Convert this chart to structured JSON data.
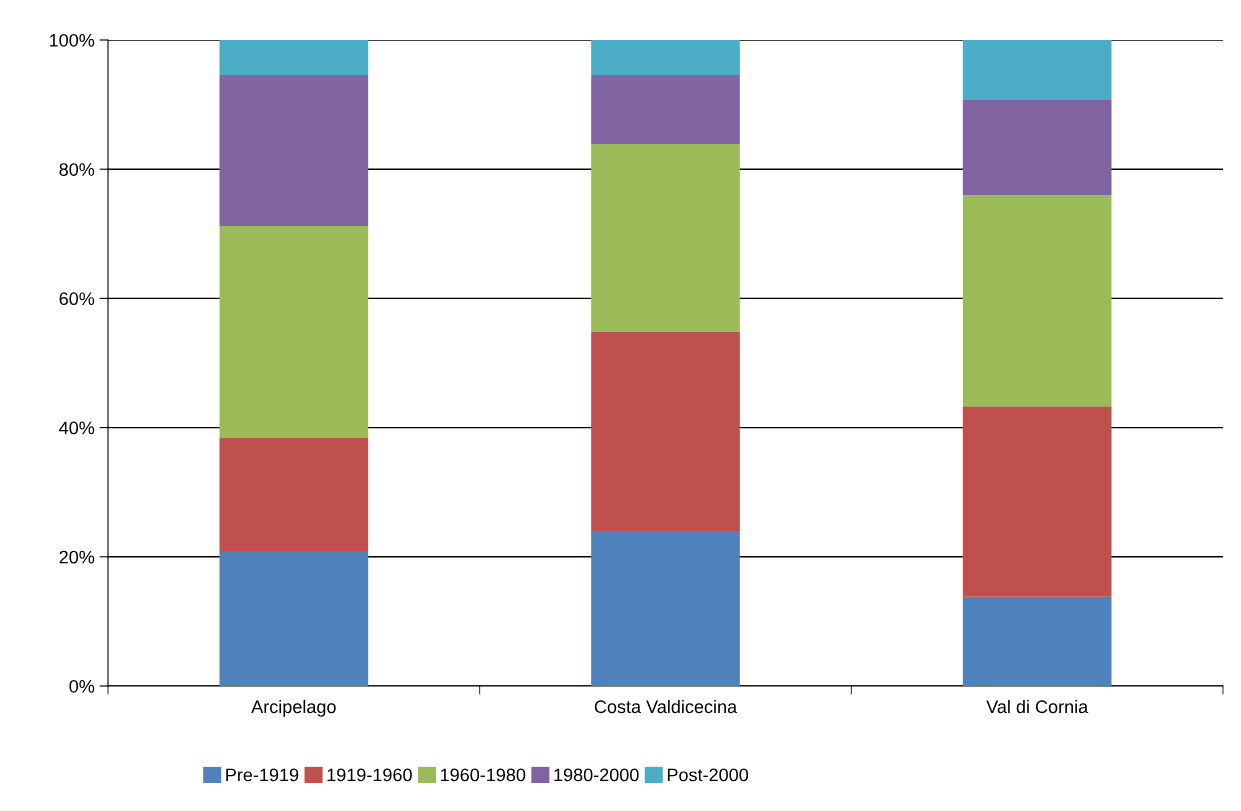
{
  "chart_data": {
    "type": "bar",
    "stacked": true,
    "categories": [
      "Arcipelago",
      "Costa Valdicecina",
      "Val di Cornia"
    ],
    "series": [
      {
        "name": "Pre-1919",
        "color": "#4f81bd",
        "values": [
          20.9,
          24.0,
          13.8
        ]
      },
      {
        "name": "1919-1960",
        "color": "#c0504d",
        "values": [
          17.5,
          30.8,
          29.5
        ]
      },
      {
        "name": "1960-1980",
        "color": "#9bbb59",
        "values": [
          32.8,
          29.1,
          32.7
        ]
      },
      {
        "name": "1980-2000",
        "color": "#8064a2",
        "values": [
          23.4,
          10.7,
          14.7
        ]
      },
      {
        "name": "Post-2000",
        "color": "#4bacc6",
        "values": [
          5.4,
          5.4,
          9.3
        ]
      }
    ],
    "ylim": [
      0,
      100
    ],
    "yticks": [
      {
        "value": 0,
        "label": "0%"
      },
      {
        "value": 20,
        "label": "20%"
      },
      {
        "value": 40,
        "label": "40%"
      },
      {
        "value": 60,
        "label": "60%"
      },
      {
        "value": 80,
        "label": "80%"
      },
      {
        "value": 100,
        "label": "100%"
      }
    ],
    "grid": "y",
    "legend": "bottom"
  }
}
